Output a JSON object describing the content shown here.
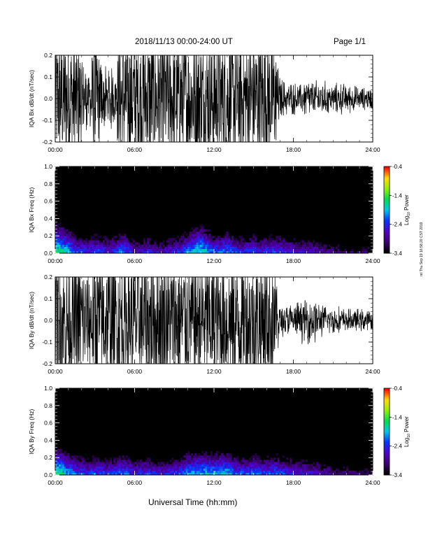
{
  "header": {
    "title": "2018/11/13  00:00-24:00 UT",
    "page": "Page 1/1"
  },
  "footer": {
    "xlabel": "Universal Time (hh:mm)",
    "stamp": "rel Thu Sep 19 16:58:20 CST 2019"
  },
  "chart_data": [
    {
      "type": "line",
      "ylabel": "IQA Bx dB/dt (nT/sec)",
      "xlabel": "",
      "xlim": [
        0,
        24
      ],
      "ylim": [
        -0.2,
        0.2
      ],
      "x_ticks": [
        "00:00",
        "06:00",
        "12:00",
        "18:00",
        "24:00"
      ],
      "y_ticks": [
        "-0.2",
        "-0.1",
        "0.0",
        "0.1",
        "0.2"
      ],
      "series": [
        {
          "x": [
            0,
            0.5,
            1,
            1.5,
            2,
            2.5,
            3,
            3.5,
            4,
            4.5,
            5,
            5.5,
            6,
            6.5,
            7,
            7.5,
            8,
            8.5,
            9,
            9.5,
            10,
            10.5,
            11,
            11.5,
            12,
            12.5,
            13,
            13.5,
            14,
            14.5,
            15,
            15.5,
            16,
            16.5,
            17,
            17.5,
            18,
            18.5,
            19,
            19.5,
            20,
            20.5,
            21,
            21.5,
            22,
            22.5,
            23,
            23.5,
            24
          ],
          "amplitude": [
            0.2,
            0.2,
            0.2,
            0.2,
            0.15,
            0.12,
            0.18,
            0.14,
            0.1,
            0.12,
            0.2,
            0.2,
            0.2,
            0.2,
            0.2,
            0.2,
            0.2,
            0.2,
            0.18,
            0.2,
            0.2,
            0.2,
            0.2,
            0.2,
            0.2,
            0.2,
            0.2,
            0.2,
            0.2,
            0.2,
            0.2,
            0.2,
            0.2,
            0.2,
            0.08,
            0.06,
            0.06,
            0.05,
            0.08,
            0.06,
            0.07,
            0.06,
            0.05,
            0.06,
            0.05,
            0.05,
            0.04,
            0.04,
            0.04
          ]
        }
      ]
    },
    {
      "type": "heatmap",
      "ylabel": "IQA Bx Freq (Hz)",
      "xlabel": "",
      "xlim": [
        0,
        24
      ],
      "ylim": [
        0,
        1.0
      ],
      "x_ticks": [
        "00:00",
        "06:00",
        "12:00",
        "18:00",
        "24:00"
      ],
      "y_ticks": [
        "0.0",
        "0.2",
        "0.4",
        "0.6",
        "0.8",
        "1.0"
      ],
      "colorbar": {
        "label": "Log",
        "label_sub": "10",
        "label_suffix": " Power",
        "ticks": [
          "-0.4",
          "-1.4",
          "-2.4",
          "-3.4"
        ],
        "range": [
          -3.4,
          -0.4
        ]
      },
      "x": [
        0,
        0.5,
        1,
        1.5,
        2,
        2.5,
        3,
        3.5,
        4,
        4.5,
        5,
        5.5,
        6,
        6.5,
        7,
        7.5,
        8,
        8.5,
        9,
        9.5,
        10,
        10.5,
        11,
        11.5,
        12,
        12.5,
        13,
        13.5,
        14,
        14.5,
        15,
        15.5,
        16,
        16.5,
        17,
        17.5,
        18,
        18.5,
        19,
        19.5,
        20,
        20.5,
        21,
        21.5,
        22,
        22.5,
        23,
        23.5,
        24
      ],
      "low_freq_level": [
        -1.4,
        -1.6,
        -1.8,
        -2.2,
        -2.3,
        -2.4,
        -2.2,
        -2.3,
        -2.4,
        -2.3,
        -2.0,
        -2.2,
        -2.6,
        -2.5,
        -2.4,
        -2.6,
        -2.7,
        -2.5,
        -2.4,
        -2.3,
        -2.0,
        -1.8,
        -1.6,
        -1.9,
        -2.2,
        -2.1,
        -2.0,
        -2.2,
        -2.4,
        -2.3,
        -2.2,
        -2.4,
        -2.3,
        -2.2,
        -2.3,
        -2.4,
        -2.5,
        -2.6,
        -2.5,
        -2.6,
        -2.7,
        -2.8,
        -2.9,
        -2.9,
        -3.0,
        -3.0,
        -3.0,
        -3.0,
        -3.0
      ]
    },
    {
      "type": "line",
      "ylabel": "IQA By dB/dt (nT/sec)",
      "xlabel": "",
      "xlim": [
        0,
        24
      ],
      "ylim": [
        -0.2,
        0.2
      ],
      "x_ticks": [
        "00:00",
        "06:00",
        "12:00",
        "18:00",
        "24:00"
      ],
      "y_ticks": [
        "-0.2",
        "-0.1",
        "0.0",
        "0.1",
        "0.2"
      ],
      "series": [
        {
          "x": [
            0,
            0.5,
            1,
            1.5,
            2,
            2.5,
            3,
            3.5,
            4,
            4.5,
            5,
            5.5,
            6,
            6.5,
            7,
            7.5,
            8,
            8.5,
            9,
            9.5,
            10,
            10.5,
            11,
            11.5,
            12,
            12.5,
            13,
            13.5,
            14,
            14.5,
            15,
            15.5,
            16,
            16.5,
            17,
            17.5,
            18,
            18.5,
            19,
            19.5,
            20,
            20.5,
            21,
            21.5,
            22,
            22.5,
            23,
            23.5,
            24
          ],
          "amplitude": [
            0.2,
            0.2,
            0.2,
            0.2,
            0.2,
            0.15,
            0.2,
            0.2,
            0.2,
            0.2,
            0.2,
            0.18,
            0.2,
            0.2,
            0.2,
            0.2,
            0.2,
            0.2,
            0.2,
            0.2,
            0.2,
            0.2,
            0.2,
            0.2,
            0.2,
            0.2,
            0.2,
            0.2,
            0.2,
            0.2,
            0.2,
            0.2,
            0.2,
            0.2,
            0.06,
            0.06,
            0.06,
            0.07,
            0.08,
            0.09,
            0.06,
            0.05,
            0.05,
            0.05,
            0.04,
            0.04,
            0.04,
            0.04,
            0.03
          ]
        }
      ]
    },
    {
      "type": "heatmap",
      "ylabel": "IQA By Freq (Hz)",
      "xlabel": "",
      "xlim": [
        0,
        24
      ],
      "ylim": [
        0,
        1.0
      ],
      "x_ticks": [
        "00:00",
        "06:00",
        "12:00",
        "18:00",
        "24:00"
      ],
      "y_ticks": [
        "0.0",
        "0.2",
        "0.4",
        "0.6",
        "0.8",
        "1.0"
      ],
      "colorbar": {
        "label": "Log",
        "label_sub": "10",
        "label_suffix": " Power",
        "ticks": [
          "-0.4",
          "-1.4",
          "-2.4",
          "-3.4"
        ],
        "range": [
          -3.4,
          -0.4
        ]
      },
      "x": [
        0,
        0.5,
        1,
        1.5,
        2,
        2.5,
        3,
        3.5,
        4,
        4.5,
        5,
        5.5,
        6,
        6.5,
        7,
        7.5,
        8,
        8.5,
        9,
        9.5,
        10,
        10.5,
        11,
        11.5,
        12,
        12.5,
        13,
        13.5,
        14,
        14.5,
        15,
        15.5,
        16,
        16.5,
        17,
        17.5,
        18,
        18.5,
        19,
        19.5,
        20,
        20.5,
        21,
        21.5,
        22,
        22.5,
        23,
        23.5,
        24
      ],
      "low_freq_level": [
        -1.5,
        -1.6,
        -1.9,
        -2.1,
        -2.2,
        -2.3,
        -2.2,
        -2.2,
        -2.3,
        -2.3,
        -2.1,
        -2.2,
        -2.4,
        -2.3,
        -2.3,
        -2.4,
        -2.5,
        -2.4,
        -2.3,
        -2.2,
        -2.0,
        -1.9,
        -1.8,
        -1.9,
        -1.9,
        -1.8,
        -1.9,
        -2.1,
        -2.2,
        -2.2,
        -2.1,
        -2.2,
        -2.2,
        -2.1,
        -2.2,
        -2.3,
        -2.4,
        -2.4,
        -2.5,
        -2.5,
        -2.6,
        -2.7,
        -2.8,
        -2.9,
        -2.9,
        -3.0,
        -3.0,
        -3.0,
        -3.0
      ]
    }
  ]
}
